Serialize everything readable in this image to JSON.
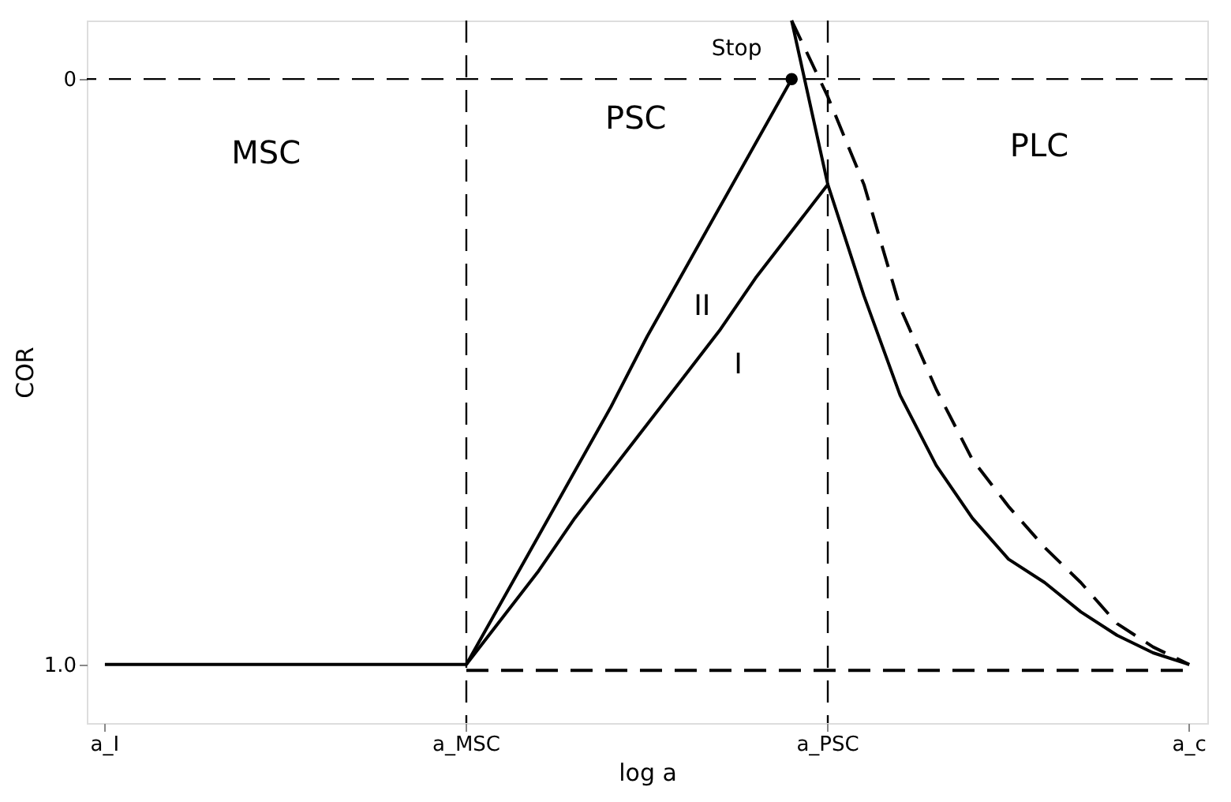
{
  "chart_data": {
    "type": "line",
    "xlabel": "log a",
    "ylabel": "COR",
    "categories": [
      "a_I",
      null,
      null,
      null,
      null,
      null,
      null,
      null,
      null,
      null,
      "a_MSC",
      null,
      null,
      null,
      null,
      null,
      null,
      null,
      null,
      null,
      "a_PSC",
      null,
      null,
      null,
      null,
      null,
      null,
      null,
      null,
      null,
      "a_c"
    ],
    "ylim": [
      1.1,
      -0.1
    ],
    "yticks": [
      0,
      {
        "value": 1,
        "label": "1.0"
      }
    ],
    "grid": false,
    "series": [
      {
        "name": "I",
        "color": "#000000",
        "values": [
          1.0,
          1.0,
          1.0,
          1.0,
          1.0,
          1.0,
          1.0,
          1.0,
          1.0,
          1.0,
          1.0,
          0.92,
          0.84,
          0.75,
          0.67,
          0.59,
          0.51,
          0.43,
          0.34,
          0.26,
          0.18,
          0.37,
          0.54,
          0.66,
          0.75,
          0.82,
          0.86,
          0.91,
          0.95,
          0.98,
          1.0
        ]
      },
      {
        "name": "II",
        "color": "#000000",
        "values": [
          null,
          null,
          null,
          null,
          null,
          null,
          null,
          null,
          null,
          null,
          1.0,
          0.89,
          0.78,
          0.67,
          0.56,
          0.44,
          0.33,
          0.22,
          0.11,
          0.0,
          null,
          null,
          null,
          null,
          null,
          null,
          null,
          null,
          null,
          null,
          null
        ]
      },
      {
        "color": "#000000",
        "type": "scatter",
        "values": [
          null,
          null,
          null,
          null,
          null,
          null,
          null,
          null,
          null,
          null,
          null,
          null,
          null,
          null,
          null,
          null,
          null,
          null,
          null,
          0.0,
          null,
          null,
          null,
          null,
          null,
          null,
          null,
          null,
          null,
          null,
          null
        ]
      },
      {
        "color": "#000000",
        "values": [
          null,
          null,
          null,
          null,
          null,
          null,
          null,
          null,
          null,
          null,
          null,
          null,
          null,
          null,
          null,
          null,
          null,
          null,
          null,
          -0.1,
          0.18,
          null,
          null,
          null,
          null,
          null,
          null,
          null,
          null,
          null,
          null
        ]
      },
      {
        "color": "#000000",
        "line_style": "dashed",
        "values": [
          null,
          null,
          null,
          null,
          null,
          null,
          null,
          null,
          null,
          null,
          null,
          null,
          null,
          null,
          null,
          null,
          null,
          null,
          null,
          -0.1,
          0.03,
          0.18,
          0.39,
          0.53,
          0.65,
          0.73,
          0.8,
          0.86,
          0.93,
          0.97,
          1.0
        ]
      },
      {
        "color": "#000000",
        "line_style": "dashed",
        "values": [
          null,
          null,
          null,
          null,
          null,
          null,
          null,
          null,
          null,
          null,
          1.01,
          1.01,
          1.01,
          1.01,
          1.01,
          1.01,
          1.01,
          1.01,
          1.01,
          1.01,
          1.01,
          1.01,
          1.01,
          1.01,
          1.01,
          1.01,
          1.01,
          1.01,
          1.01,
          1.01,
          1.01
        ]
      }
    ],
    "ref_lines": [
      {
        "axis": "y",
        "value": 0,
        "line_style": "dashed",
        "color": "#000000"
      },
      {
        "axis": "x",
        "value": "a_MSC",
        "line_style": "dashed",
        "color": "#000000"
      },
      {
        "axis": "x",
        "value": "a_PSC",
        "line_style": "dashed",
        "color": "#000000"
      }
    ],
    "annotations": [
      "MSC",
      "PSC",
      "PLC",
      "Stop"
    ]
  }
}
